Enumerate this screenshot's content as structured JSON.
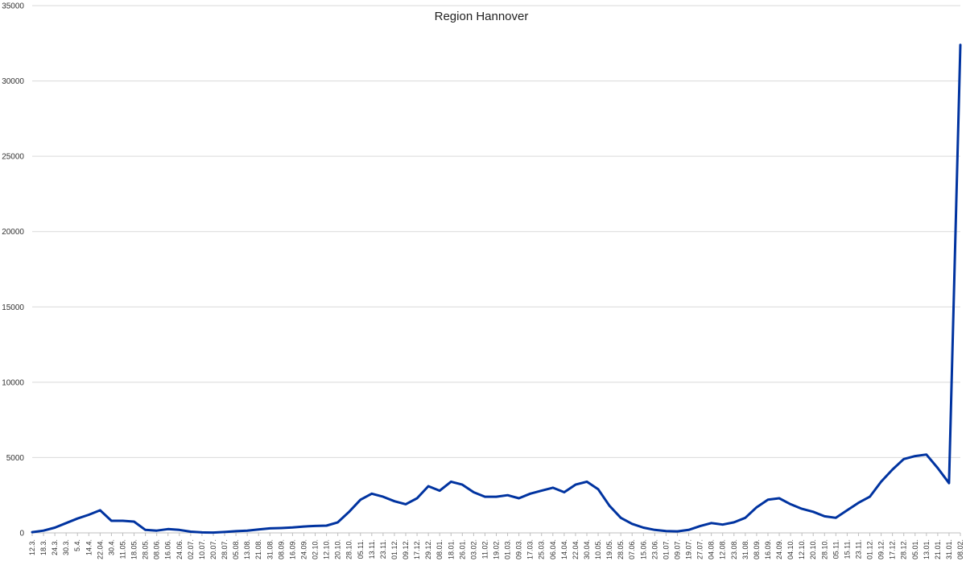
{
  "chart_data": {
    "type": "line",
    "title": "Region Hannover",
    "xlabel": "",
    "ylabel": "",
    "ylim": [
      0,
      35000
    ],
    "yticks": [
      0,
      5000,
      10000,
      15000,
      20000,
      25000,
      30000,
      35000
    ],
    "grid": true,
    "line_color": "#0033a0",
    "categories": [
      "12.3.",
      "18.3.",
      "24.3.",
      "30.3.",
      "5.4.",
      "14.4.",
      "22.04.",
      "30.4.",
      "11.05.",
      "18.05.",
      "28.05.",
      "08.06.",
      "16.06.",
      "24.06.",
      "02.07.",
      "10.07.",
      "20.07.",
      "28.07.",
      "05.08.",
      "13.08.",
      "21.08.",
      "31.08.",
      "08.09.",
      "16.09.",
      "24.09.",
      "02.10.",
      "12.10.",
      "20.10.",
      "28.10.",
      "05.11.",
      "13.11.",
      "23.11.",
      "01.12.",
      "09.12.",
      "17.12.",
      "29.12.",
      "08.01.",
      "18.01.",
      "26.01.",
      "03.02.",
      "11.02.",
      "19.02.",
      "01.03.",
      "09.03.",
      "17.03.",
      "25.03.",
      "06.04.",
      "14.04.",
      "22.04.",
      "30.04.",
      "10.05.",
      "19.05.",
      "28.05.",
      "07.06.",
      "15.06.",
      "23.06.",
      "01.07.",
      "09.07.",
      "19.07.",
      "27.07.",
      "04.08.",
      "12.08.",
      "23.08.",
      "31.08.",
      "08.09.",
      "16.09.",
      "24.09.",
      "04.10.",
      "12.10.",
      "20.10.",
      "28.10.",
      "05.11.",
      "15.11.",
      "23.11.",
      "01.12.",
      "09.12.",
      "17.12.",
      "28.12.",
      "05.01.",
      "13.01.",
      "21.01.",
      "31.01.",
      "08.02."
    ],
    "series": [
      {
        "values": [
          50,
          150,
          350,
          650,
          950,
          1200,
          1500,
          800,
          800,
          750,
          200,
          150,
          250,
          200,
          80,
          30,
          20,
          60,
          110,
          150,
          230,
          300,
          320,
          360,
          420,
          460,
          480,
          700,
          1400,
          2200,
          2600,
          2400,
          2100,
          1900,
          2300,
          3100,
          2800,
          3400,
          3200,
          2700,
          2400,
          2400,
          2500,
          2300,
          2600,
          2800,
          3000,
          2700,
          3200,
          3400,
          2900,
          1800,
          1000,
          600,
          350,
          200,
          120,
          100,
          200,
          450,
          650,
          550,
          700,
          1000,
          1700,
          2200,
          2300,
          1900,
          1600,
          1400,
          1100,
          1000,
          1500,
          2000,
          2400,
          3400,
          4200,
          4900,
          5100,
          5200,
          4300,
          3300,
          32400
        ]
      }
    ]
  }
}
